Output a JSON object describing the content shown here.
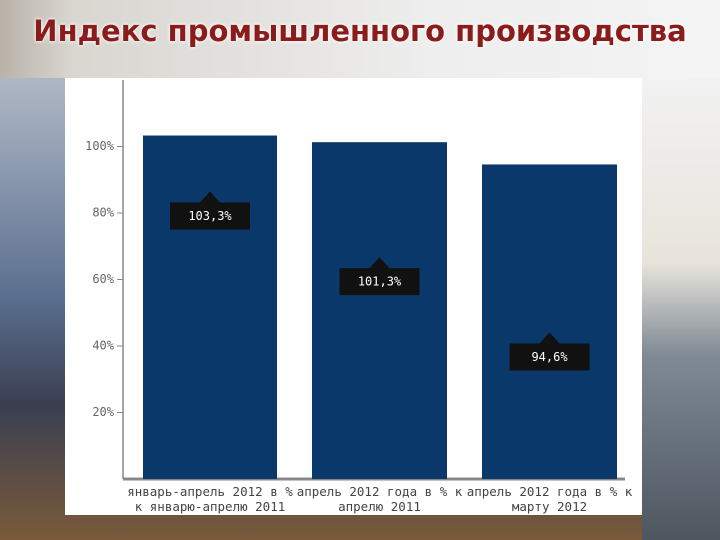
{
  "chart_data": {
    "type": "bar",
    "title": "Индекс промышленного производства",
    "categories": [
      "январь-апрель 2012 в % к январю-апрелю 2011",
      "апрель 2012 года в % к апрелю 2011",
      "апрель 2012 года в % к марту 2012"
    ],
    "values": [
      103.3,
      101.3,
      94.6
    ],
    "value_labels": [
      "103,3%",
      "101,3%",
      "94,6%"
    ],
    "color": "#0b386b",
    "ylim": [
      0,
      120
    ],
    "yticks": [
      {
        "value": 20,
        "label": "20%"
      },
      {
        "value": 40,
        "label": "40%"
      },
      {
        "value": 60,
        "label": "60%"
      },
      {
        "value": 80,
        "label": "80%"
      },
      {
        "value": 100,
        "label": "100%"
      }
    ]
  }
}
